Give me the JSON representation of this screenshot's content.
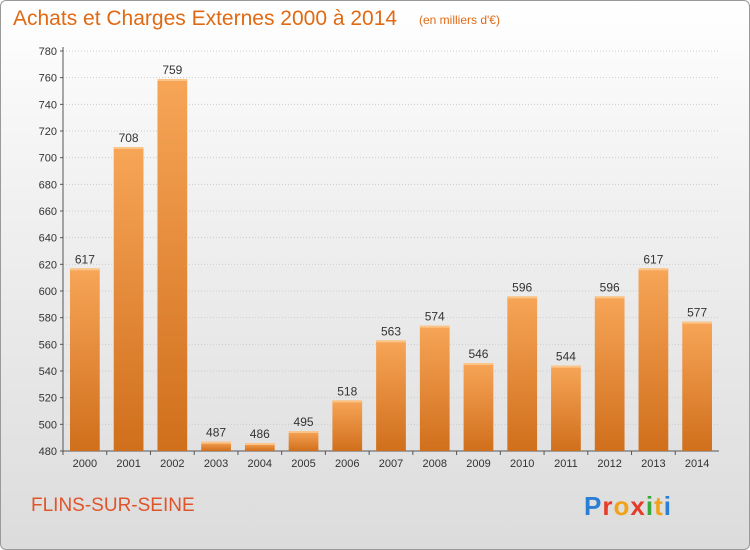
{
  "header": {
    "title": "Achats et Charges Externes 2000 à 2014",
    "unit": "(en milliers d'€)"
  },
  "footer": {
    "place": "FLINS-SUR-SEINE",
    "logo_text": "Proxiti"
  },
  "colors": {
    "bar_top": "#f7a557",
    "bar_bottom": "#d06f1c",
    "title": "#e06a14",
    "grid": "#cccccc"
  },
  "chart_data": {
    "type": "bar",
    "categories": [
      "2000",
      "2001",
      "2002",
      "2003",
      "2004",
      "2005",
      "2006",
      "2007",
      "2008",
      "2009",
      "2010",
      "2011",
      "2012",
      "2013",
      "2014"
    ],
    "values": [
      617,
      708,
      759,
      487,
      486,
      495,
      518,
      563,
      574,
      546,
      596,
      544,
      596,
      617,
      577
    ],
    "title": "Achats et Charges Externes 2000 à 2014",
    "subtitle": "(en milliers d'€)",
    "xlabel": "",
    "ylabel": "",
    "ylim": [
      480,
      780
    ],
    "yticks": [
      480,
      500,
      520,
      540,
      560,
      580,
      600,
      620,
      640,
      660,
      680,
      700,
      720,
      740,
      760,
      780
    ],
    "grid": true,
    "legend": "none"
  }
}
